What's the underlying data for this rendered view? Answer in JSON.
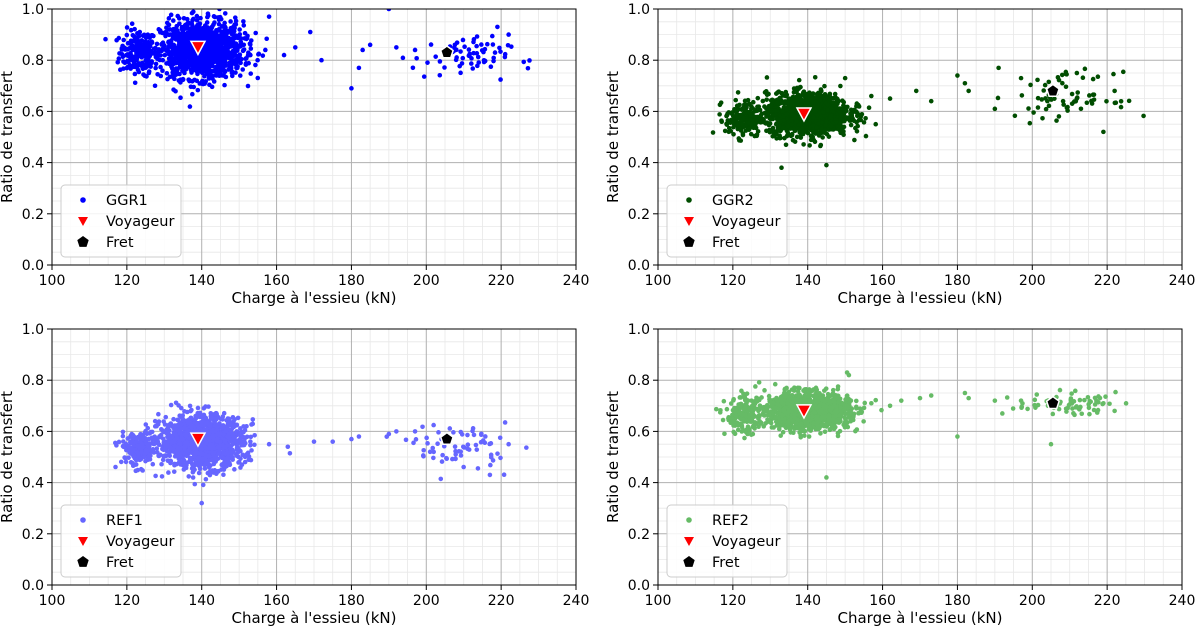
{
  "chart_data": [
    {
      "type": "scatter",
      "xlabel": "Charge à l'essieu (kN)",
      "ylabel": "Ratio de transfert",
      "xlim": [
        100,
        240
      ],
      "ylim": [
        0.0,
        1.0
      ],
      "xticks": [
        "100",
        "120",
        "140",
        "160",
        "180",
        "200",
        "220",
        "240"
      ],
      "yticks": [
        "0.0",
        "0.2",
        "0.4",
        "0.6",
        "0.8",
        "1.0"
      ],
      "grid": true,
      "legend_position": "lower-left",
      "series": [
        {
          "name": "GGR1",
          "color": "#0000ff",
          "marker": "dot",
          "clusters": [
            {
              "x_center": 123,
              "x_spread": 2.5,
              "y_center": 0.83,
              "y_spread": 0.045,
              "count": 180
            },
            {
              "x_center": 140,
              "x_spread": 5.5,
              "y_center": 0.84,
              "y_spread": 0.055,
              "count": 1300
            },
            {
              "x_center": 209,
              "x_spread": 6.5,
              "y_center": 0.81,
              "y_spread": 0.04,
              "count": 70
            }
          ],
          "points": [
            [
              153,
              0.82
            ],
            [
              157,
              0.84
            ],
            [
              162,
              0.82
            ],
            [
              169,
              0.91
            ],
            [
              172,
              0.8
            ],
            [
              180,
              0.69
            ],
            [
              182,
              0.77
            ],
            [
              183,
              0.84
            ],
            [
              190,
              1.0
            ],
            [
              192,
              0.85
            ],
            [
              197,
              0.84
            ],
            [
              219,
              0.93
            ],
            [
              222,
              0.9
            ],
            [
              158,
              0.97
            ],
            [
              165,
              0.85
            ],
            [
              185,
              0.86
            ]
          ]
        },
        {
          "name": "Voyageur",
          "color": "#ff0000",
          "marker": "triangle-down",
          "points": [
            [
              139,
              0.85
            ]
          ]
        },
        {
          "name": "Fret",
          "color": "#000000",
          "marker": "pentagon",
          "points": [
            [
              205.5,
              0.83
            ]
          ]
        }
      ]
    },
    {
      "type": "scatter",
      "xlabel": "Charge à l'essieu (kN)",
      "ylabel": "Ratio de transfert",
      "xlim": [
        100,
        240
      ],
      "ylim": [
        0.0,
        1.0
      ],
      "xticks": [
        "100",
        "120",
        "140",
        "160",
        "180",
        "200",
        "220",
        "240"
      ],
      "yticks": [
        "0.0",
        "0.2",
        "0.4",
        "0.6",
        "0.8",
        "1.0"
      ],
      "grid": true,
      "legend_position": "lower-left",
      "series": [
        {
          "name": "GGR2",
          "color": "#004d00",
          "marker": "dot",
          "clusters": [
            {
              "x_center": 123,
              "x_spread": 2.5,
              "y_center": 0.57,
              "y_spread": 0.035,
              "count": 180
            },
            {
              "x_center": 140,
              "x_spread": 5.5,
              "y_center": 0.59,
              "y_spread": 0.04,
              "count": 1300
            },
            {
              "x_center": 209,
              "x_spread": 6.5,
              "y_center": 0.66,
              "y_spread": 0.045,
              "count": 70
            }
          ],
          "points": [
            [
              153,
              0.62
            ],
            [
              157,
              0.66
            ],
            [
              162,
              0.65
            ],
            [
              169,
              0.68
            ],
            [
              173,
              0.64
            ],
            [
              180,
              0.74
            ],
            [
              182,
              0.71
            ],
            [
              183,
              0.68
            ],
            [
              190,
              0.61
            ],
            [
              191,
              0.77
            ],
            [
              197,
              0.73
            ],
            [
              219,
              0.52
            ],
            [
              222,
              0.68
            ],
            [
              150,
              0.73
            ],
            [
              145,
              0.39
            ],
            [
              133,
              0.38
            ]
          ]
        },
        {
          "name": "Voyageur",
          "color": "#ff0000",
          "marker": "triangle-down",
          "points": [
            [
              139,
              0.59
            ]
          ]
        },
        {
          "name": "Fret",
          "color": "#000000",
          "marker": "pentagon",
          "points": [
            [
              205.5,
              0.68
            ]
          ]
        }
      ]
    },
    {
      "type": "scatter",
      "xlabel": "Charge à l'essieu (kN)",
      "ylabel": "Ratio de transfert",
      "xlim": [
        100,
        240
      ],
      "ylim": [
        0.0,
        1.0
      ],
      "xticks": [
        "100",
        "120",
        "140",
        "160",
        "180",
        "200",
        "220",
        "240"
      ],
      "yticks": [
        "0.0",
        "0.2",
        "0.4",
        "0.6",
        "0.8",
        "1.0"
      ],
      "grid": true,
      "legend_position": "lower-left",
      "series": [
        {
          "name": "REF1",
          "color": "#6666ff",
          "marker": "dot",
          "clusters": [
            {
              "x_center": 123,
              "x_spread": 2.5,
              "y_center": 0.53,
              "y_spread": 0.035,
              "count": 180
            },
            {
              "x_center": 140,
              "x_spread": 5.5,
              "y_center": 0.56,
              "y_spread": 0.05,
              "count": 1300
            },
            {
              "x_center": 209,
              "x_spread": 6.5,
              "y_center": 0.54,
              "y_spread": 0.045,
              "count": 70
            }
          ],
          "points": [
            [
              153,
              0.56
            ],
            [
              158,
              0.55
            ],
            [
              163,
              0.54
            ],
            [
              170,
              0.56
            ],
            [
              175,
              0.56
            ],
            [
              180,
              0.57
            ],
            [
              182,
              0.58
            ],
            [
              190,
              0.59
            ],
            [
              192,
              0.6
            ],
            [
              197,
              0.6
            ],
            [
              222,
              0.55
            ],
            [
              150,
              0.48
            ],
            [
              140,
              0.32
            ],
            [
              217,
              0.43
            ]
          ]
        },
        {
          "name": "Voyageur",
          "color": "#ff0000",
          "marker": "triangle-down",
          "points": [
            [
              139,
              0.57
            ]
          ]
        },
        {
          "name": "Fret",
          "color": "#000000",
          "marker": "pentagon",
          "points": [
            [
              205.5,
              0.57
            ]
          ]
        }
      ]
    },
    {
      "type": "scatter",
      "xlabel": "Charge à l'essieu (kN)",
      "ylabel": "Ratio de transfert",
      "xlim": [
        100,
        240
      ],
      "ylim": [
        0.0,
        1.0
      ],
      "xticks": [
        "100",
        "120",
        "140",
        "160",
        "180",
        "200",
        "220",
        "240"
      ],
      "yticks": [
        "0.0",
        "0.2",
        "0.4",
        "0.6",
        "0.8",
        "1.0"
      ],
      "grid": true,
      "legend_position": "lower-left",
      "series": [
        {
          "name": "REF2",
          "color": "#66bb66",
          "marker": "dot",
          "clusters": [
            {
              "x_center": 123,
              "x_spread": 2.5,
              "y_center": 0.66,
              "y_spread": 0.035,
              "count": 180
            },
            {
              "x_center": 140,
              "x_spread": 5.5,
              "y_center": 0.68,
              "y_spread": 0.035,
              "count": 1300
            },
            {
              "x_center": 209,
              "x_spread": 6.5,
              "y_center": 0.71,
              "y_spread": 0.02,
              "count": 70
            }
          ],
          "points": [
            [
              153,
              0.69
            ],
            [
              157,
              0.71
            ],
            [
              162,
              0.7
            ],
            [
              165,
              0.72
            ],
            [
              170,
              0.73
            ],
            [
              173,
              0.74
            ],
            [
              180,
              0.58
            ],
            [
              182,
              0.75
            ],
            [
              183,
              0.73
            ],
            [
              190,
              0.72
            ],
            [
              192,
              0.67
            ],
            [
              197,
              0.72
            ],
            [
              219,
              0.71
            ],
            [
              222,
              0.68
            ],
            [
              205,
              0.55
            ],
            [
              151,
              0.82
            ],
            [
              145,
              0.42
            ]
          ]
        },
        {
          "name": "Voyageur",
          "color": "#ff0000",
          "marker": "triangle-down",
          "points": [
            [
              139,
              0.68
            ]
          ]
        },
        {
          "name": "Fret",
          "color": "#000000",
          "marker": "pentagon",
          "points": [
            [
              205.5,
              0.71
            ]
          ]
        }
      ]
    }
  ]
}
